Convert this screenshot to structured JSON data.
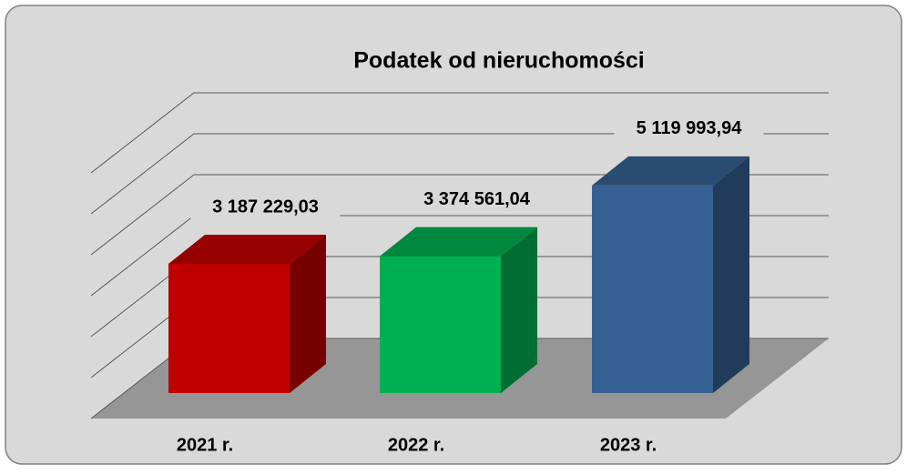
{
  "chart_data": {
    "type": "bar3d",
    "title": "Podatek od nieruchomości",
    "categories": [
      "2021 r.",
      "2022 r.",
      "2023 r."
    ],
    "values": [
      3187229.03,
      3374561.04,
      5119993.94
    ],
    "value_labels": [
      "3 187 229,03",
      "3 374 561,04",
      "5 119 993,94"
    ],
    "colors": [
      "#c00000",
      "#00b050",
      "#366092"
    ],
    "ylim": [
      0,
      6000000
    ],
    "yticks": [
      0,
      1000000,
      2000000,
      3000000,
      4000000,
      5000000,
      6000000
    ],
    "grid": true
  }
}
